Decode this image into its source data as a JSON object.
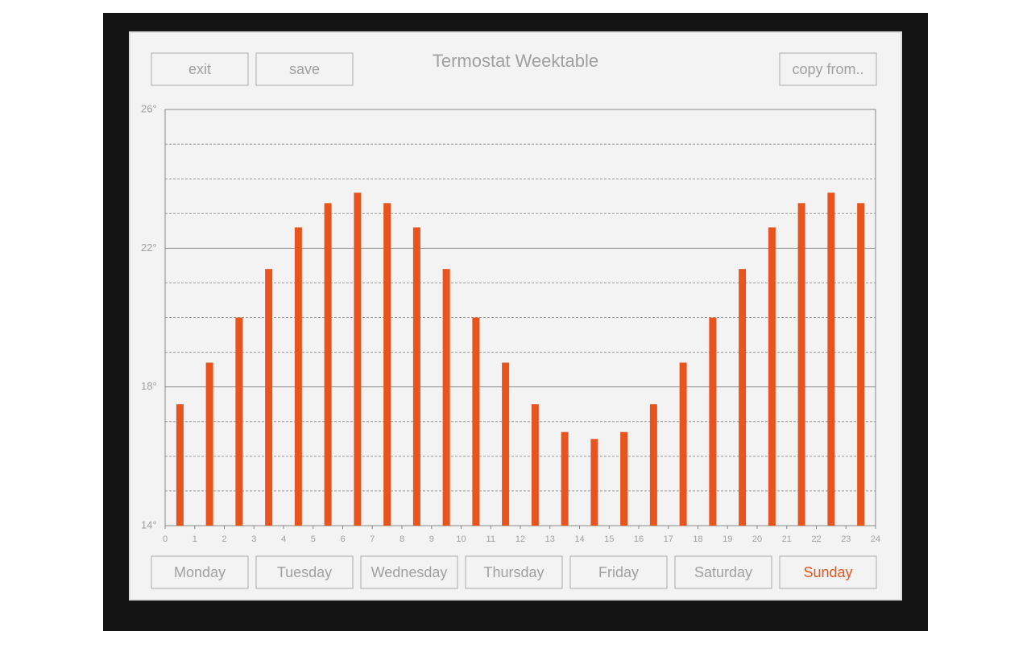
{
  "toolbar": {
    "buttons": [
      "exit",
      "save"
    ],
    "copy_button": "copy from..",
    "title": "Termostat Weektable"
  },
  "chart_data": {
    "type": "bar",
    "color": "#e8541e",
    "x": [
      0.5,
      1.5,
      2.5,
      3.5,
      4.5,
      5.5,
      6.5,
      7.5,
      8.5,
      9.5,
      10.5,
      11.5,
      12.5,
      13.5,
      14.5,
      15.5,
      16.5,
      17.5,
      18.5,
      19.5,
      20.5,
      21.5,
      22.5,
      23.5
    ],
    "values": [
      17.5,
      18.7,
      20,
      21.4,
      22.6,
      23.3,
      23.6,
      23.3,
      22.6,
      21.4,
      20,
      18.7,
      17.5,
      16.7,
      16.5,
      16.7,
      17.5,
      18.7,
      20,
      21.4,
      22.6,
      23.3,
      23.6,
      23.3
    ],
    "xlim": [
      0,
      24
    ],
    "xticks": [
      0,
      1,
      2,
      3,
      4,
      5,
      6,
      7,
      8,
      9,
      10,
      11,
      12,
      13,
      14,
      15,
      16,
      17,
      18,
      19,
      20,
      21,
      22,
      23,
      24
    ],
    "ylim": [
      14,
      26
    ],
    "yticks": [
      {
        "value": 14,
        "label": "14°"
      },
      {
        "value": 18,
        "label": "18°"
      },
      {
        "value": 22,
        "label": "22°"
      },
      {
        "value": 26,
        "label": "26°"
      }
    ],
    "minor_yticks": [
      15,
      16,
      17,
      19,
      20,
      21,
      23,
      24,
      25
    ],
    "grid": true
  },
  "days": [
    "Monday",
    "Tuesday",
    "Wednesday",
    "Thursday",
    "Friday",
    "Saturday",
    "Sunday"
  ],
  "selected_day": 6
}
